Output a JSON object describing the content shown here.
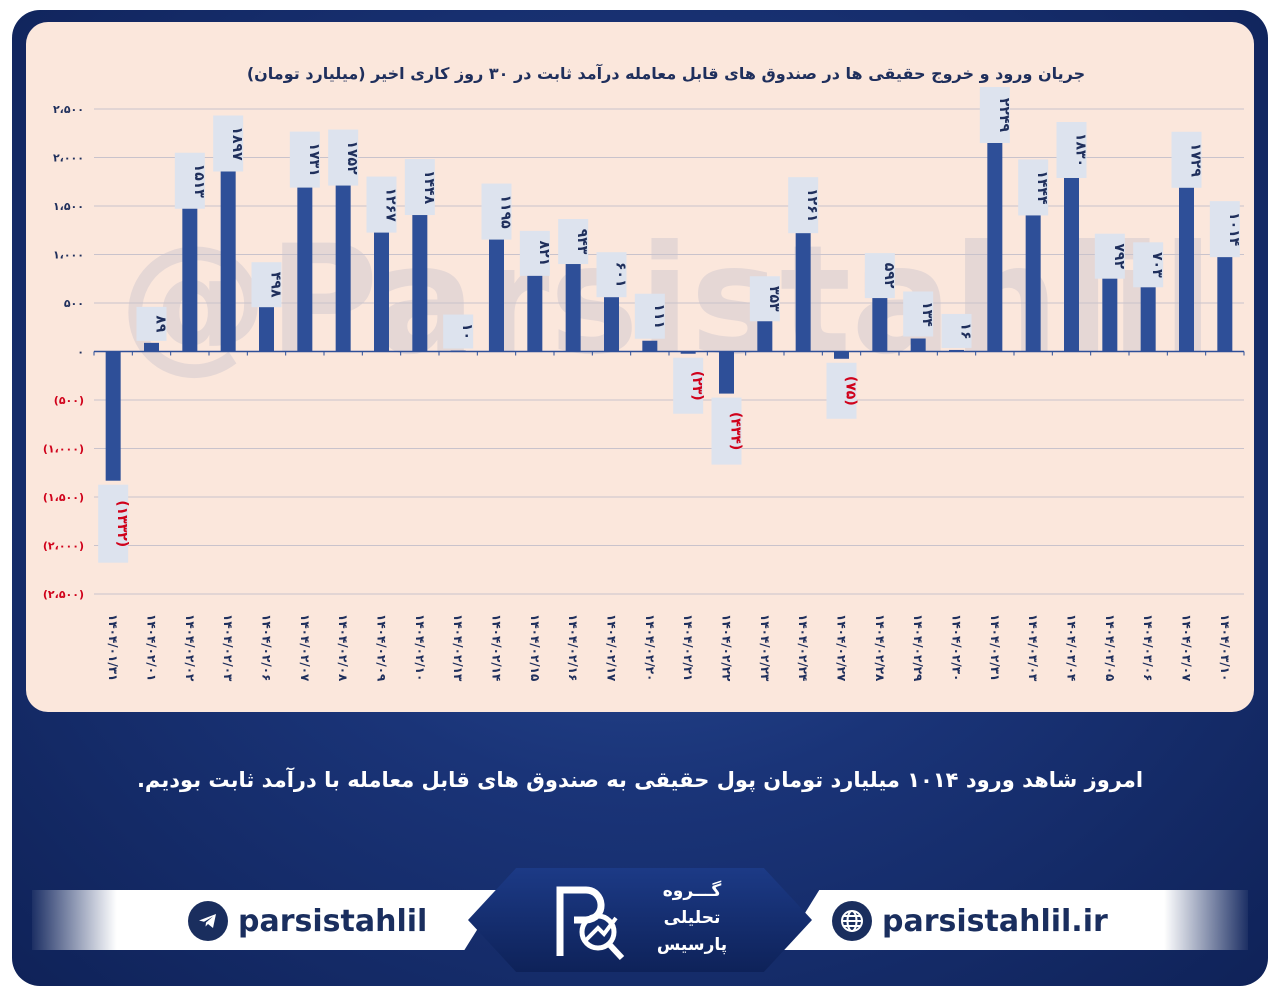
{
  "chart_data": {
    "type": "bar",
    "title": "جریان ورود و خروج حقیقی ها در صندوق های قابل معامله درآمد ثابت در ۳۰ روز کاری اخیر (میلیارد تومان)",
    "categories": [
      "۱۴۰۴/۰۱/۳۱",
      "۱۴۰۴/۰۲/۰۱",
      "۱۴۰۴/۰۲/۰۲",
      "۱۴۰۴/۰۲/۰۳",
      "۱۴۰۴/۰۲/۰۶",
      "۱۴۰۴/۰۲/۰۷",
      "۱۴۰۴/۰۲/۰۸",
      "۱۴۰۴/۰۲/۰۹",
      "۱۴۰۴/۰۲/۱۰",
      "۱۴۰۴/۰۲/۱۳",
      "۱۴۰۴/۰۲/۱۴",
      "۱۴۰۴/۰۲/۱۵",
      "۱۴۰۴/۰۲/۱۶",
      "۱۴۰۴/۰۲/۱۷",
      "۱۴۰۴/۰۲/۲۰",
      "۱۴۰۴/۰۲/۲۱",
      "۱۴۰۴/۰۲/۲۲",
      "۱۴۰۴/۰۲/۲۳",
      "۱۴۰۴/۰۲/۲۴",
      "۱۴۰۴/۰۲/۲۷",
      "۱۴۰۴/۰۲/۲۸",
      "۱۴۰۴/۰۲/۲۹",
      "۱۴۰۴/۰۲/۳۰",
      "۱۴۰۴/۰۲/۳۱",
      "۱۴۰۴/۰۳/۰۳",
      "۱۴۰۴/۰۳/۰۴",
      "۱۴۰۴/۰۳/۰۵",
      "۱۴۰۴/۰۳/۰۶",
      "۱۴۰۴/۰۳/۰۷",
      "۱۴۰۴/۰۳/۱۰"
    ],
    "values": [
      -1332,
      89,
      1513,
      1897,
      498,
      1731,
      1752,
      1267,
      1448,
      10,
      1195,
      821,
      943,
      601,
      111,
      -23,
      -434,
      353,
      1261,
      -75,
      592,
      134,
      16,
      2249,
      1444,
      1830,
      792,
      703,
      1729,
      1014
    ],
    "data_labels": [
      "(۱۳۳۲)",
      "۸۹",
      "۱۵۱۳",
      "۱۸۹۷",
      "۴۹۸",
      "۱۷۳۱",
      "۱۷۵۲",
      "۱۲۶۷",
      "۱۴۴۸",
      "۱۰",
      "۱۱۹۵",
      "۸۲۱",
      "۹۴۳",
      "۶۰۱",
      "۱۱۱",
      "(۲۳)",
      "(۴۳۴)",
      "۳۵۳",
      "۱۲۶۱",
      "(۷۵)",
      "۵۹۲",
      "۱۳۴",
      "۱۶",
      "۲۲۴۹",
      "۱۴۴۴",
      "۱۸۳۰",
      "۷۹۲",
      "۷۰۳",
      "۱۷۲۹",
      "۱۰۱۴"
    ],
    "y_ticks": [
      {
        "value": 2500,
        "label": "۲،۵۰۰"
      },
      {
        "value": 2000,
        "label": "۲،۰۰۰"
      },
      {
        "value": 1500,
        "label": "۱،۵۰۰"
      },
      {
        "value": 1000,
        "label": "۱،۰۰۰"
      },
      {
        "value": 500,
        "label": "۵۰۰"
      },
      {
        "value": 0,
        "label": "۰"
      },
      {
        "value": -500,
        "label": "(۵۰۰)"
      },
      {
        "value": -1000,
        "label": "(۱،۰۰۰)"
      },
      {
        "value": -1500,
        "label": "(۱،۵۰۰)"
      },
      {
        "value": -2000,
        "label": "(۲،۰۰۰)"
      },
      {
        "value": -2500,
        "label": "(۲،۵۰۰)"
      }
    ],
    "ylim": [
      -2500,
      2500
    ],
    "grid": true,
    "colors": {
      "bar": "#2e4f98",
      "negative_label": "#d0021b",
      "label": "#1f2f5c",
      "label_box": "#dde3ee",
      "grid": "#c9c3cc",
      "watermark": "#c9c4cc"
    },
    "watermark": "@Parsistahlil"
  },
  "caption": "امروز شاهد ورود ۱۰۱۴ میلیارد تومان پول حقیقی به صندوق های قابل معامله با درآمد ثابت بودیم.",
  "footer": {
    "telegram": "parsistahlil",
    "website": "parsistahlil.ir",
    "logo_lines": [
      "گـــروه",
      "تحلیلی",
      "پارسیس"
    ],
    "icons": {
      "telegram": "telegram-icon",
      "website": "globe-icon",
      "logo": "parsis-logo-icon"
    }
  }
}
